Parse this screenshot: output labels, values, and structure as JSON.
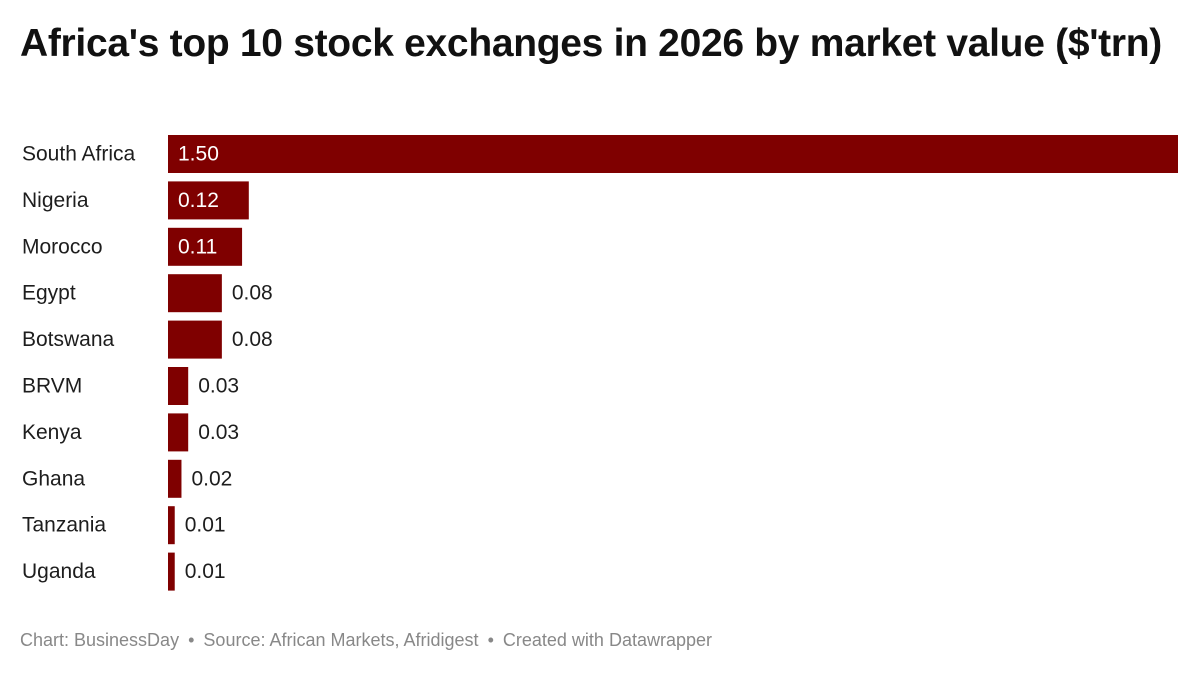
{
  "chart_data": {
    "type": "bar",
    "orientation": "horizontal",
    "title": "Africa's top 10 stock exchanges in 2026 by market value ($'trn)",
    "categories": [
      "South Africa",
      "Nigeria",
      "Morocco",
      "Egypt",
      "Botswana",
      "BRVM",
      "Kenya",
      "Ghana",
      "Tanzania",
      "Uganda"
    ],
    "values": [
      1.5,
      0.12,
      0.11,
      0.08,
      0.08,
      0.03,
      0.03,
      0.02,
      0.01,
      0.01
    ],
    "value_labels": [
      "1.50",
      "0.12",
      "0.11",
      "0.08",
      "0.08",
      "0.03",
      "0.03",
      "0.02",
      "0.01",
      "0.01"
    ],
    "xlim": [
      0,
      1.5
    ],
    "grid": false,
    "legend": "none",
    "bar_color": "#7f0000"
  },
  "footer": {
    "chart_credit": "Chart: BusinessDay",
    "source": "Source: African Markets, Afridigest",
    "created_with": "Created with Datawrapper",
    "separator": "•"
  }
}
